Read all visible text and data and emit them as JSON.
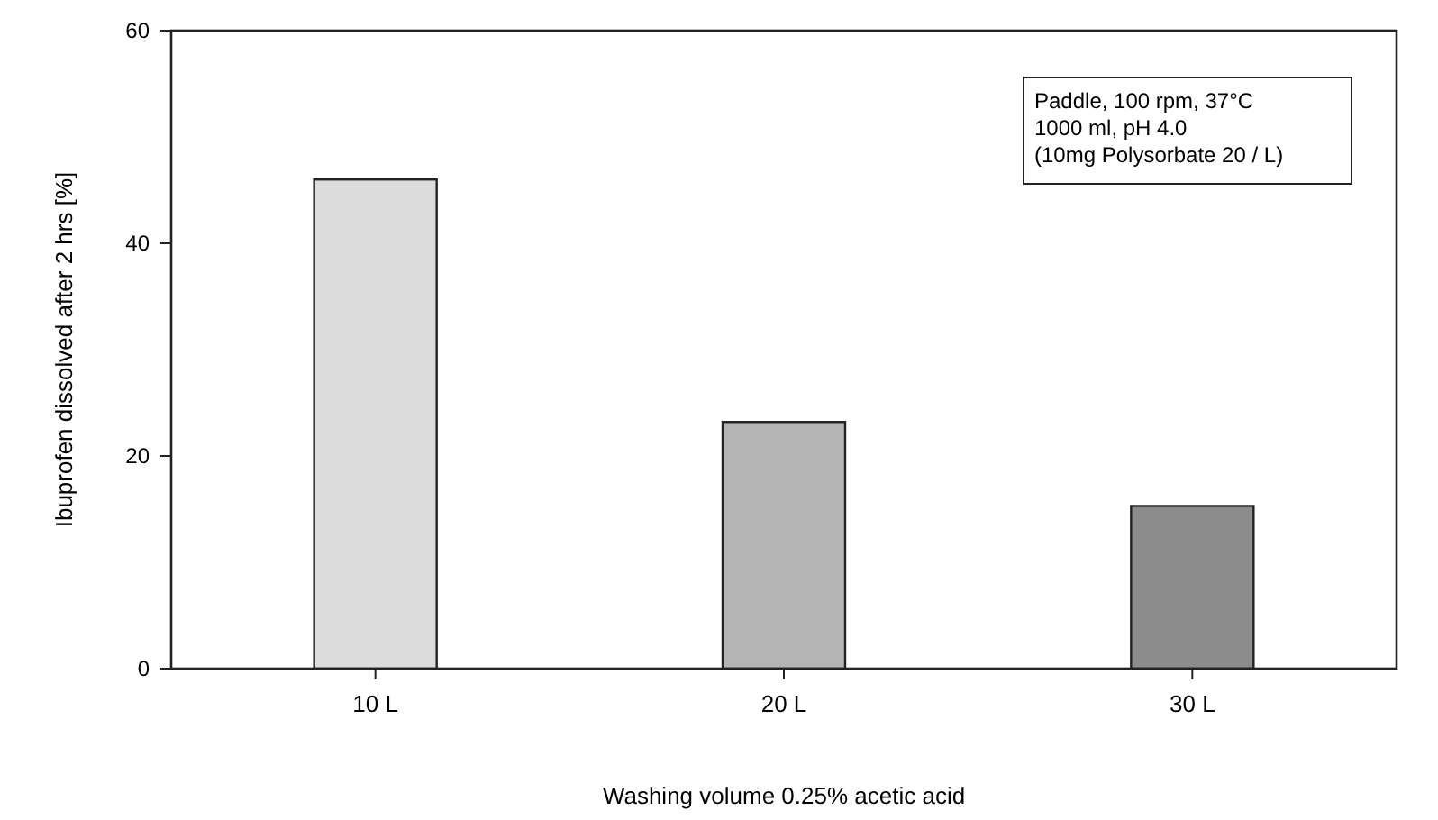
{
  "chart_data": {
    "type": "bar",
    "xlabel": "Washing volume 0.25% acetic acid",
    "ylabel": "Ibuprofen dissolved after 2 hrs [%]",
    "categories": [
      "10 L",
      "20 L",
      "30 L"
    ],
    "values": [
      46,
      23.2,
      15.3
    ],
    "colors": [
      "#dcdcdc",
      "#b4b4b4",
      "#8c8c8c"
    ],
    "ylim": [
      0,
      60
    ],
    "yticks": [
      0,
      20,
      40,
      60
    ],
    "grid": false,
    "annotations": [
      "Paddle, 100 rpm, 37°C",
      "1000 ml, pH 4.0",
      "(10mg Polysorbate  20 / L)"
    ]
  }
}
